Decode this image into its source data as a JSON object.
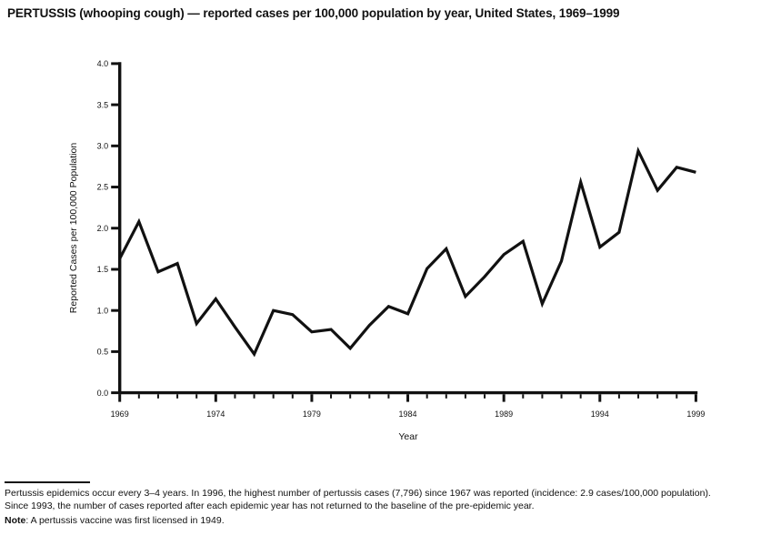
{
  "page": {
    "title": "PERTUSSIS (whooping cough) — reported cases per 100,000 population by year, United States, 1969–1999"
  },
  "colors": {
    "ink": "#111111",
    "background": "#ffffff",
    "line": "#111111"
  },
  "chart_data": {
    "type": "line",
    "title": "PERTUSSIS (whooping cough) — reported cases per 100,000 population by year, United States, 1969–1999",
    "xlabel": "Year",
    "ylabel": "Reported Cases per 100,000 Population",
    "x": [
      1969,
      1970,
      1971,
      1972,
      1973,
      1974,
      1975,
      1976,
      1977,
      1978,
      1979,
      1980,
      1981,
      1982,
      1983,
      1984,
      1985,
      1986,
      1987,
      1988,
      1989,
      1990,
      1991,
      1992,
      1993,
      1994,
      1995,
      1996,
      1997,
      1998,
      1999
    ],
    "values": [
      1.63,
      2.08,
      1.47,
      1.57,
      0.84,
      1.14,
      0.8,
      0.47,
      1.0,
      0.95,
      0.74,
      0.77,
      0.54,
      0.82,
      1.05,
      0.96,
      1.51,
      1.75,
      1.17,
      1.41,
      1.68,
      1.84,
      1.08,
      1.6,
      2.56,
      1.77,
      1.95,
      2.94,
      2.46,
      2.74,
      2.68
    ],
    "ylim": [
      0.0,
      4.0
    ],
    "y_tick_step": 0.5,
    "y_tick_labels": [
      "0.0",
      "0.5",
      "1.0",
      "1.5",
      "2.0",
      "2.5",
      "3.0",
      "3.5",
      "4.0"
    ],
    "x_major_ticks": [
      1969,
      1974,
      1979,
      1984,
      1989,
      1994,
      1999
    ],
    "x_tick_labels": [
      "1969",
      "1974",
      "1979",
      "1984",
      "1989",
      "1994",
      "1999"
    ],
    "x_minor_tick_step": 1,
    "grid": false,
    "legend": "none"
  },
  "footnote": {
    "line1": "Pertussis epidemics occur every 3–4 years. In 1996, the highest number of pertussis cases (7,796) since 1967 was reported (incidence: 2.9 cases/100,000 population).",
    "line2": "Since 1993, the number of cases reported after each epidemic year has not returned to the baseline of the pre-epidemic year.",
    "note_label": "Note",
    "note_text": ": A pertussis vaccine was first licensed in 1949."
  }
}
